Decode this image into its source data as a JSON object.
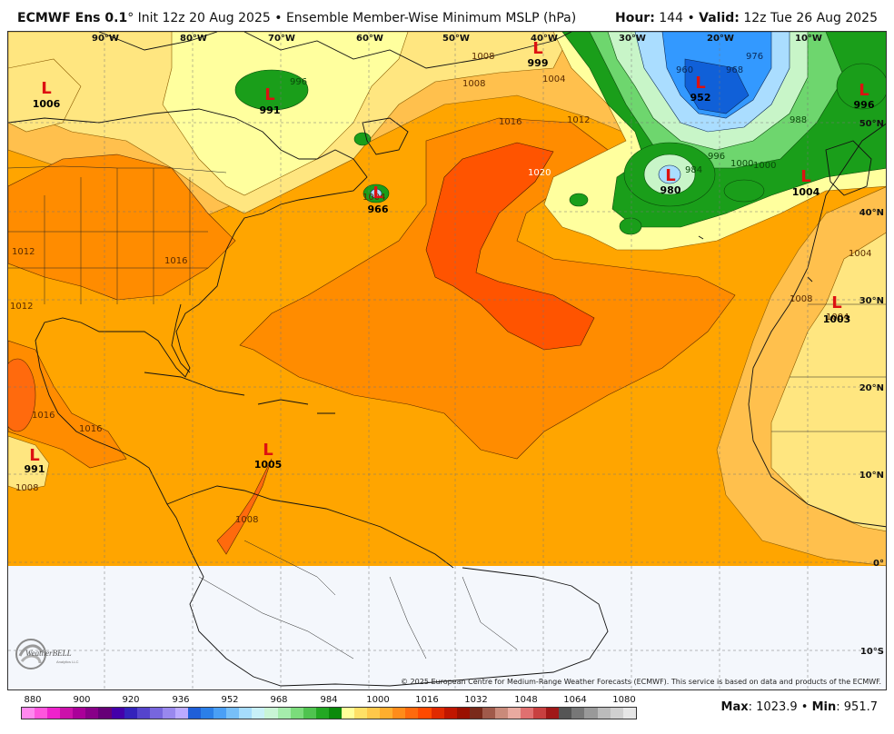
{
  "header": {
    "model": "ECMWF Ens 0.1",
    "degree": "°",
    "init": "Init 12z 20 Aug 2025",
    "bullet": "•",
    "product": "Ensemble Member-Wise Minimum MSLP (hPa)",
    "hour_label": "Hour:",
    "hour_value": "144",
    "valid_label": "Valid:",
    "valid_value": "12z Tue 26 Aug 2025"
  },
  "map": {
    "lon_labels": [
      "90°W",
      "80°W",
      "70°W",
      "60°W",
      "50°W",
      "40°W",
      "30°W",
      "20°W",
      "10°W"
    ],
    "lat_labels": [
      "50°N",
      "40°N",
      "30°N",
      "20°N",
      "10°N",
      "0°",
      "10°S"
    ],
    "lows": [
      {
        "letter": "L",
        "value": "1006"
      },
      {
        "letter": "L",
        "value": "991"
      },
      {
        "letter": "L",
        "value": "999"
      },
      {
        "letter": "L",
        "value": "952"
      },
      {
        "letter": "L",
        "value": "996"
      },
      {
        "letter": "L",
        "value": "966"
      },
      {
        "letter": "L",
        "value": "980"
      },
      {
        "letter": "L",
        "value": "1004"
      },
      {
        "letter": "L",
        "value": "1003"
      },
      {
        "letter": "L",
        "value": "991"
      },
      {
        "letter": "L",
        "value": "1005"
      }
    ],
    "contour_labels": [
      "1008",
      "1004",
      "1008",
      "1012",
      "1016",
      "1020",
      "1016",
      "1012",
      "1012",
      "1016",
      "1016",
      "1008",
      "1004",
      "996",
      "1004",
      "1000",
      "988",
      "976",
      "968",
      "960",
      "984",
      "996",
      "1000",
      "1008",
      "1004",
      "1008"
    ],
    "colors": {
      "ocean_1012": "#ffa500",
      "band_1016": "#ff8c00",
      "band_1020": "#ff5400",
      "band_1008": "#ffc04d",
      "band_1004": "#ffe680",
      "band_1000": "#ffff9e",
      "band_996": "#1a9e1a",
      "band_988": "#6ed66e",
      "band_980": "#c8f5c8",
      "band_968": "#aaddff",
      "band_960": "#3399ff",
      "band_952": "#1060d8",
      "low_red": "#dd1111",
      "no_data": "#f4f7fc"
    },
    "logo_text": "WeatherBELL",
    "logo_sub": "Analytics LLC",
    "copyright": "© 2025 European Centre for Medium-Range Weather Forecasts (ECMWF). This service is based on data and products of the ECMWF."
  },
  "colorbar": {
    "ticks": [
      "880",
      "900",
      "920",
      "936",
      "952",
      "968",
      "984",
      "1000",
      "1016",
      "1032",
      "1048",
      "1064",
      "1080"
    ],
    "colors": [
      "#ff88ee",
      "#ff55dd",
      "#ee22cc",
      "#cc11aa",
      "#aa0099",
      "#880088",
      "#660077",
      "#4400aa",
      "#3322bb",
      "#5544cc",
      "#7766dd",
      "#9988ee",
      "#bbaaff",
      "#1f5fd8",
      "#2b7fe8",
      "#4a9ff5",
      "#77bff8",
      "#a6dcfc",
      "#c8f0f8",
      "#c9f5d6",
      "#a5ecac",
      "#7bdc7b",
      "#4fc34f",
      "#23a823",
      "#0a8a0a",
      "#ffff99",
      "#ffe066",
      "#ffc84a",
      "#ffae2e",
      "#ff8c1a",
      "#ff6a0d",
      "#ff4a00",
      "#e02a00",
      "#c01600",
      "#9a1000",
      "#7a2a1a",
      "#a05a4a",
      "#c98a7a",
      "#e8aaa0",
      "#e07070",
      "#c84040",
      "#a01818",
      "#555555",
      "#777777",
      "#999999",
      "#bbbbbb",
      "#d0d0d0",
      "#e6e6e6"
    ]
  },
  "stats": {
    "max_label": "Max",
    "max_value": "1023.9",
    "min_label": "Min",
    "min_value": "951.7",
    "sep": "•"
  }
}
